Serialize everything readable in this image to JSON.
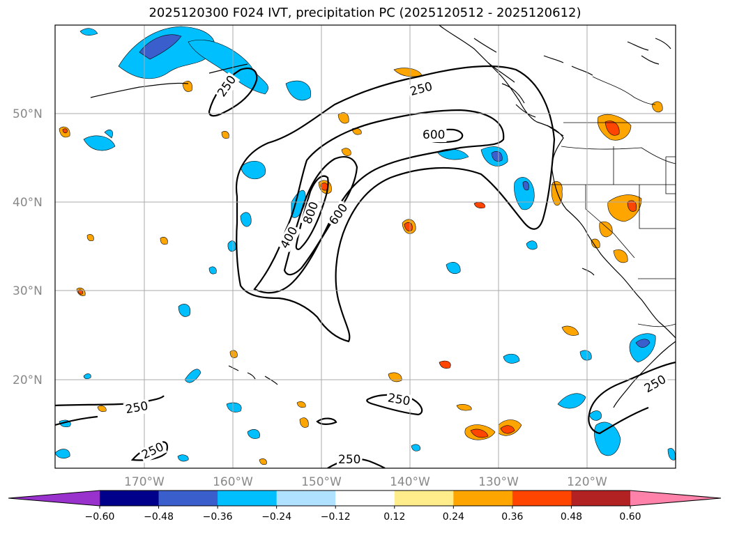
{
  "title": "2025120300 F024 IVT, precipitation PC (2025120512 - 2025120612)",
  "lat_labels": [
    "50°N",
    "40°N",
    "30°N",
    "20°N"
  ],
  "lon_labels": [
    "170°W",
    "160°W",
    "150°W",
    "140°W",
    "130°W",
    "120°W"
  ],
  "contour_labels": [
    "250",
    "250",
    "600",
    "400",
    "800",
    "600",
    "250",
    "250",
    "250",
    "250",
    "250"
  ],
  "colorbar": {
    "ticks": [
      "−0.60",
      "−0.48",
      "−0.36",
      "−0.24",
      "−0.12",
      "0.12",
      "0.24",
      "0.36",
      "0.48",
      "0.60"
    ],
    "colors": [
      "#9932cc",
      "#00008b",
      "#3a5fcd",
      "#00bfff",
      "#b0e2ff",
      "#ffffff",
      "#ffec8b",
      "#ffa500",
      "#ff4500",
      "#b22222",
      "#ff82ab"
    ]
  }
}
